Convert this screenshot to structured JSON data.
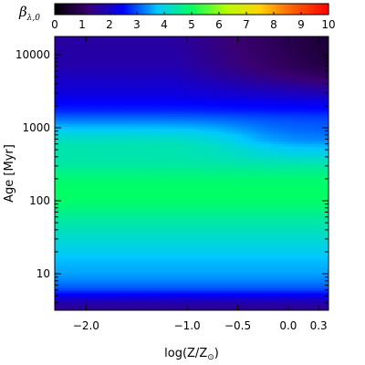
{
  "chart_data": {
    "type": "heatmap",
    "colorbar": {
      "label": "β",
      "label_subscript": "λ,0",
      "range": [
        0,
        10
      ],
      "ticks": [
        "0",
        "1",
        "2",
        "3",
        "4",
        "5",
        "6",
        "7",
        "8",
        "9",
        "10"
      ],
      "colormap": [
        "#000000",
        "#3a0072",
        "#0000ff",
        "#00c8ff",
        "#00ff64",
        "#b4ff00",
        "#ffd200",
        "#ff5a00",
        "#ff0000"
      ],
      "location": "top"
    },
    "x_axis": {
      "label": "log(Z/Z",
      "label_suffix": ")",
      "label_symbol": "⊙",
      "range": [
        -2.31,
        0.398
      ],
      "scale": "linear",
      "ticks": [
        {
          "value": -2.0,
          "label": "−2.0"
        },
        {
          "value": -1.0,
          "label": "−1.0"
        },
        {
          "value": -0.5,
          "label": "−0.5"
        },
        {
          "value": 0.0,
          "label": "0.0"
        },
        {
          "value": 0.3,
          "label": "0.3"
        }
      ]
    },
    "y_axis": {
      "label": "Age [Myr]",
      "range": [
        3.16,
        17783
      ],
      "scale": "log",
      "ticks": [
        {
          "value": 10,
          "label": "10"
        },
        {
          "value": 100,
          "label": "100"
        },
        {
          "value": 1000,
          "label": "1000"
        },
        {
          "value": 10000,
          "label": "10000"
        }
      ]
    },
    "z_profile": {
      "log_age": [
        0.5,
        0.62,
        0.72,
        0.8,
        0.9,
        1.0,
        1.2,
        1.4,
        1.6,
        1.8,
        1.95,
        2.05,
        2.15,
        2.3,
        2.5,
        2.62,
        2.75,
        2.9,
        3.05,
        3.25,
        3.45,
        3.65,
        3.85,
        4.25
      ],
      "beta": [
        1.5,
        1.8,
        2.5,
        3.0,
        3.3,
        3.5,
        3.7,
        4.0,
        4.3,
        4.6,
        4.9,
        5.0,
        5.0,
        4.9,
        4.5,
        4.4,
        4.4,
        4.1,
        3.5,
        2.7,
        2.3,
        2.1,
        1.9,
        1.8
      ]
    },
    "metallicity_effect": "at high metallicity the green band between ~300 and ~1000 Myr fades to cyan and the oldest ages (>3000 Myr) darken to dark blue/purple"
  }
}
